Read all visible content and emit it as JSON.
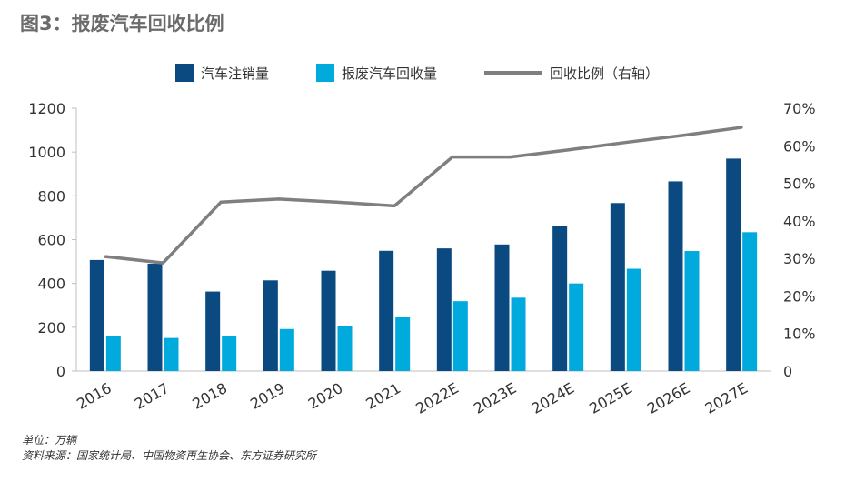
{
  "title": "图3：报废汽车回收比例",
  "footer": {
    "unit": "单位：万辆",
    "source": "资料来源：国家统计局、中国物资再生协会、东方证券研究所"
  },
  "colors": {
    "registered": "#0a4a80",
    "scrapped": "#00aadd",
    "ratio": "#7f7f7f"
  },
  "chart_data": {
    "type": "bar",
    "categories": [
      "2016",
      "2017",
      "2018",
      "2019",
      "2020",
      "2021",
      "2022E",
      "2023E",
      "2024E",
      "2025E",
      "2026E",
      "2027E"
    ],
    "series": [
      {
        "name": "汽车注销量",
        "type": "bar",
        "axis": "left",
        "values": [
          507,
          490,
          363,
          414,
          458,
          549,
          560,
          578,
          663,
          767,
          866,
          970
        ]
      },
      {
        "name": "报废汽车回收量",
        "type": "bar",
        "axis": "left",
        "values": [
          159,
          151,
          160,
          192,
          207,
          245,
          319,
          335,
          400,
          467,
          548,
          634
        ]
      },
      {
        "name": "回收比例（右轴）",
        "type": "line",
        "axis": "right",
        "values": [
          30.5,
          28.8,
          45.0,
          45.8,
          45.0,
          44.0,
          57.0,
          57.0,
          58.9,
          60.9,
          62.8,
          64.9
        ]
      }
    ],
    "y_left": {
      "min": 0,
      "max": 1200,
      "ticks": [
        "0",
        "200",
        "400",
        "600",
        "800",
        "1000",
        "1200"
      ]
    },
    "y_right": {
      "min": 0,
      "max": 70,
      "ticks": [
        "0",
        "10%",
        "20%",
        "30%",
        "40%",
        "50%",
        "60%",
        "70%"
      ]
    },
    "legend_position": "top",
    "grid": false
  }
}
